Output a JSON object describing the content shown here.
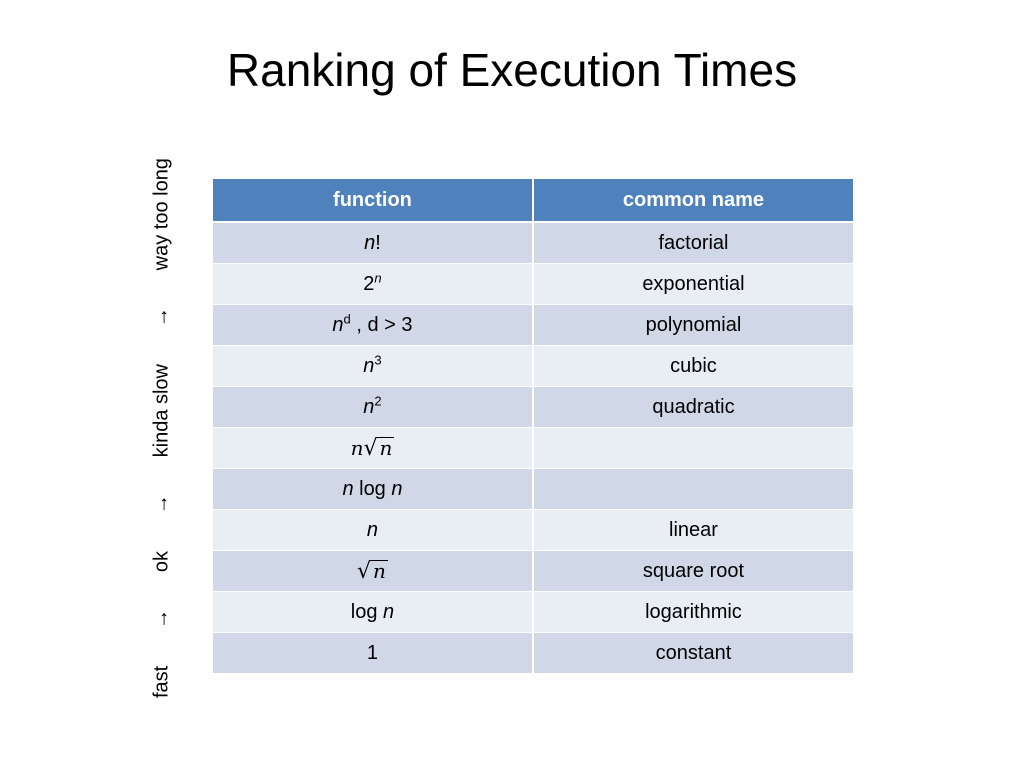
{
  "title": "Ranking of Execution Times",
  "side_axis": {
    "labels": [
      "fast",
      "ok",
      "kinda slow",
      "way too long"
    ],
    "arrow": "→"
  },
  "table": {
    "headers": {
      "function": "function",
      "common_name": "common name"
    },
    "rows": [
      {
        "fn_base": "n",
        "fn_rest": "!",
        "name": "factorial"
      },
      {
        "fn_base": "2",
        "fn_sup": "n",
        "name": "exponential"
      },
      {
        "fn_base": "n",
        "fn_sup": "d",
        "fn_rest": " , d > 3",
        "name": "polynomial"
      },
      {
        "fn_base": "n",
        "fn_sup": "3",
        "name": "cubic"
      },
      {
        "fn_base": "n",
        "fn_sup": "2",
        "name": "quadratic"
      },
      {
        "fn_base": "n",
        "fn_radical": "√",
        "fn_radicand": "n",
        "name": ""
      },
      {
        "fn_a": "n",
        "fn_mid": " log ",
        "fn_b": "n",
        "name": ""
      },
      {
        "fn_base": "n",
        "name": "linear"
      },
      {
        "fn_radical": "√",
        "fn_radicand": "n",
        "name": "square root"
      },
      {
        "fn_mid": "log ",
        "fn_b": "n",
        "name": "logarithmic"
      },
      {
        "fn_plain": "1",
        "name": "constant"
      }
    ]
  }
}
